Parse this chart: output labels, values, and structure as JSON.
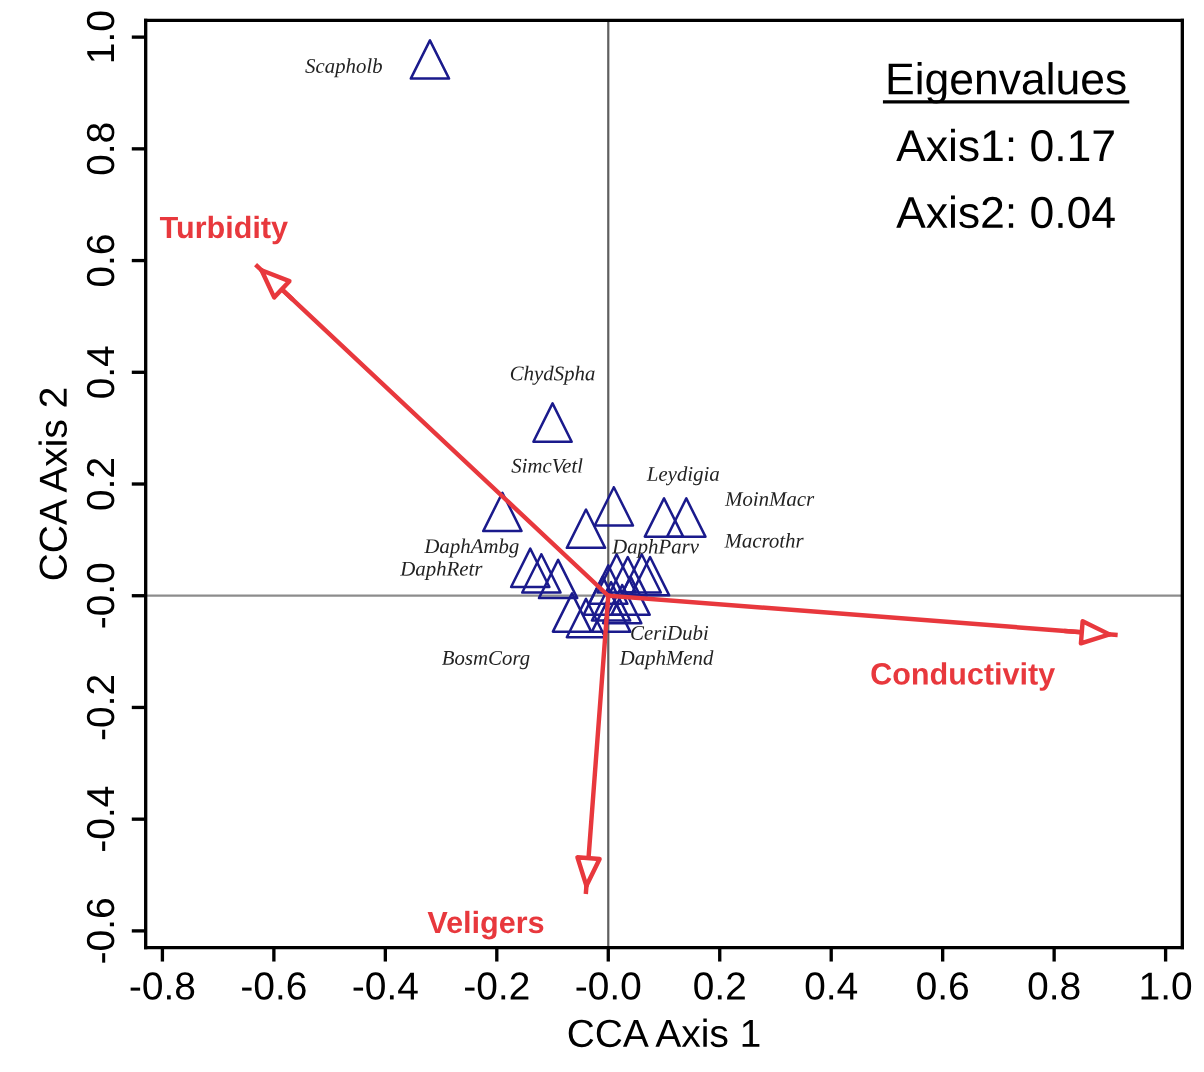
{
  "chart_data": {
    "type": "scatter",
    "xlabel": "CCA Axis 1",
    "ylabel": "CCA Axis 2",
    "xlim": [
      -0.83,
      1.03
    ],
    "ylim": [
      -0.63,
      1.03
    ],
    "xticks": [
      -0.8,
      -0.6,
      -0.4,
      -0.2,
      {
        "value": 0,
        "label": "-0.0"
      },
      0.2,
      0.4,
      0.6,
      0.8,
      {
        "value": 1,
        "label": "1.0"
      }
    ],
    "yticks": [
      -0.6,
      -0.4,
      -0.2,
      {
        "value": 0,
        "label": "-0.0"
      },
      0.2,
      0.4,
      0.6,
      0.8,
      {
        "value": 1,
        "label": "1.0"
      }
    ],
    "grid": false,
    "legend": false,
    "marker": "triangle",
    "ref_lines": [
      {
        "axis": "x",
        "value": 0,
        "color": "#606060"
      },
      {
        "axis": "y",
        "value": 0,
        "color": "#8c8c8c"
      }
    ],
    "series": [
      {
        "color": "#1a1a8c",
        "x": [
          -0.32,
          -0.1,
          -0.19,
          -0.04,
          0.01,
          0.1,
          0.14,
          -0.14,
          -0.12,
          -0.09,
          -0.065,
          -0.04,
          0.0,
          0.015,
          0.035,
          0.06,
          0.075,
          -0.01,
          0.005,
          0.025,
          0.005,
          0.04
        ],
        "values": [
          0.96,
          0.31,
          0.15,
          0.12,
          0.16,
          0.14,
          0.14,
          0.05,
          0.04,
          0.03,
          -0.03,
          -0.04,
          0.02,
          0.04,
          0.035,
          0.04,
          0.035,
          0.0,
          -0.01,
          -0.015,
          -0.03,
          0.0
        ]
      },
      {
        "type": "line",
        "marker": "none",
        "name": "Turbidity",
        "color": "#e8383d",
        "x": [
          0,
          -0.63
        ],
        "values": [
          0,
          0.59
        ]
      },
      {
        "type": "line",
        "marker": "none",
        "name": "Veligers",
        "color": "#e8383d",
        "x": [
          0,
          -0.04
        ],
        "values": [
          0,
          -0.53
        ]
      },
      {
        "type": "line",
        "marker": "none",
        "name": "Conductivity",
        "color": "#e8383d",
        "x": [
          0,
          0.91
        ],
        "values": [
          0,
          -0.07
        ]
      }
    ],
    "annotations": [
      {
        "text": "Scapholb",
        "x": -0.32,
        "y": 0.96
      },
      {
        "text": "ChydSpha",
        "x": -0.1,
        "y": 0.31
      },
      {
        "text": "SimcVetl",
        "x": -0.04,
        "y": 0.12
      },
      {
        "text": "Leydigia",
        "x": 0.01,
        "y": 0.16
      },
      {
        "text": "MoinMacr",
        "x": 0.14,
        "y": 0.14
      },
      {
        "text": "Macrothr",
        "x": 0.14,
        "y": 0.14
      },
      {
        "text": "DaphAmbg",
        "x": -0.19,
        "y": 0.15
      },
      {
        "text": "DaphRetr",
        "x": -0.14,
        "y": 0.05
      },
      {
        "text": "DaphParv",
        "x": 0.035,
        "y": 0.035
      },
      {
        "text": "BosmCorg",
        "x": -0.065,
        "y": -0.03
      },
      {
        "text": "CeriDubi",
        "x": 0.005,
        "y": -0.03
      },
      {
        "text": "DaphMend",
        "x": -0.04,
        "y": -0.04
      },
      "Eigenvalues",
      "Axis1: 0.17",
      "Axis2: 0.04"
    ]
  }
}
